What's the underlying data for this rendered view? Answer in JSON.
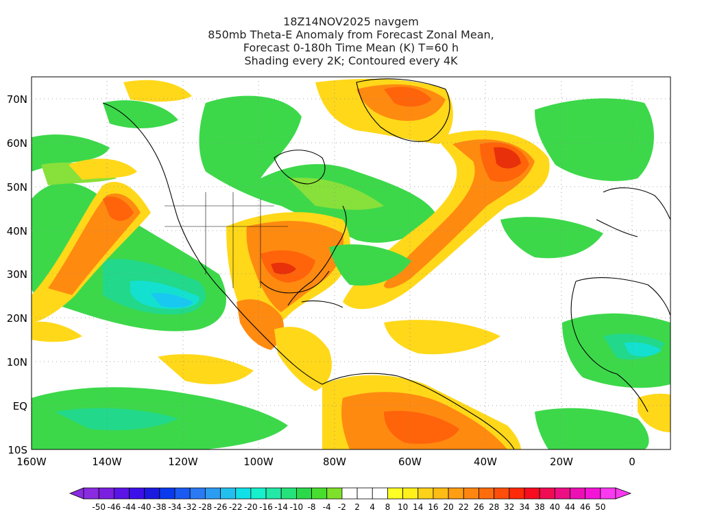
{
  "title": {
    "line1": "18Z14NOV2025 navgem",
    "line2": "850mb Theta-E Anomaly from Forecast Zonal Mean,",
    "line3": "Forecast 0-180h Time Mean (K) T=60 h",
    "line4": "Shading every 2K; Contoured every 4K"
  },
  "map": {
    "lat_labels": [
      "70N",
      "60N",
      "50N",
      "40N",
      "30N",
      "20N",
      "10N",
      "EQ",
      "10S"
    ],
    "lon_labels": [
      "160W",
      "140W",
      "120W",
      "100W",
      "80W",
      "60W",
      "40W",
      "20W",
      "0"
    ],
    "lat_range": [
      -10,
      75
    ],
    "lon_range": [
      -160,
      10
    ]
  },
  "colorbar": {
    "labels": [
      "-50",
      "-46",
      "-44",
      "-40",
      "-38",
      "-34",
      "-32",
      "-28",
      "-26",
      "-22",
      "-20",
      "-16",
      "-14",
      "-10",
      "-8",
      "-4",
      "-2",
      "2",
      "4",
      "8",
      "10",
      "14",
      "16",
      "20",
      "22",
      "26",
      "28",
      "32",
      "34",
      "38",
      "40",
      "44",
      "46",
      "50"
    ],
    "colors": [
      "#8a2be2",
      "#7b1fe0",
      "#5a14e6",
      "#3c10e8",
      "#1a1ae0",
      "#0a3aee",
      "#1a5af2",
      "#2a7af4",
      "#2c9cf2",
      "#22c0ee",
      "#12e0e8",
      "#16f0cc",
      "#22e8a8",
      "#26e27a",
      "#2ad84a",
      "#48de2e",
      "#7ee02a",
      "#ffffff",
      "#ffffff",
      "#ffffff",
      "#ffff26",
      "#fff01c",
      "#ffd21a",
      "#ffbc14",
      "#ff9e12",
      "#ff8610",
      "#ff6c0c",
      "#ff4e0a",
      "#ff2a08",
      "#f80c20",
      "#f00c52",
      "#ee0e84",
      "#ec10b4",
      "#f414d8",
      "#fa3af0"
    ]
  },
  "palette": {
    "white": "#ffffff",
    "pale_yellow": "#ffff66",
    "yellow": "#ffd81a",
    "gold": "#ffb414",
    "orange": "#ff8a10",
    "deep_orange": "#ff640a",
    "red": "#e8300a",
    "light_green": "#88e03a",
    "green": "#3cd84a",
    "teal_green": "#22d88a",
    "aqua": "#14e0d0",
    "cyan": "#18c8f0"
  }
}
